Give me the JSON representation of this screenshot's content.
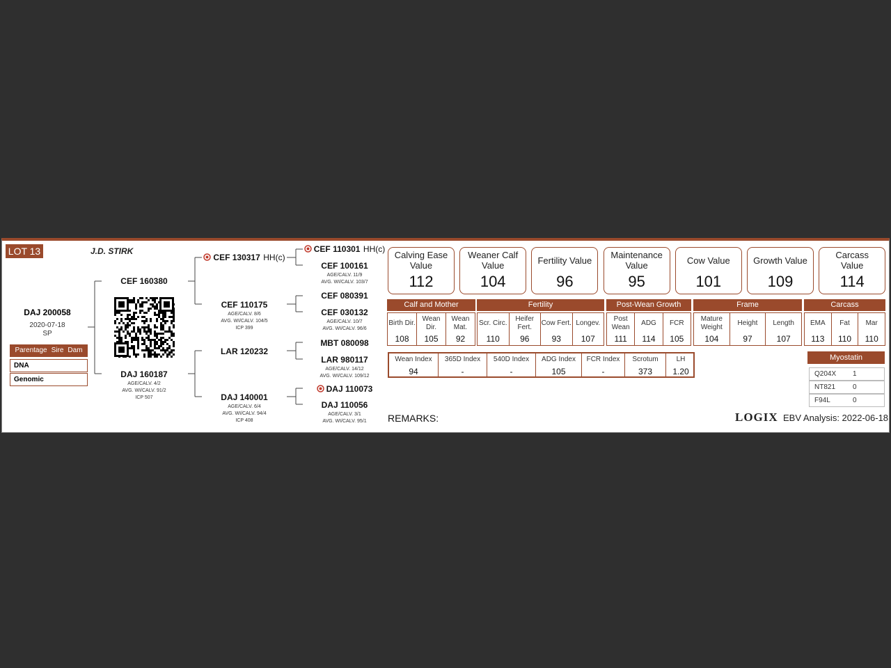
{
  "lot": "LOT 13",
  "breeder": "J.D. STIRK",
  "animal": {
    "id": "DAJ 200058",
    "birth_date": "2020-07-18",
    "status": "SP"
  },
  "parentage": {
    "header": [
      "Parentage",
      "Sire",
      "Dam"
    ],
    "rows": [
      "DNA",
      "Genomic"
    ]
  },
  "pedigree": {
    "parents": [
      {
        "id": "CEF 160380"
      },
      {
        "id": "DAJ 160187",
        "details": [
          "AGE/CALV. 4/2",
          "AVG. WI/CALV. 91/2",
          "ICP 507"
        ]
      }
    ],
    "grandparents": [
      {
        "id": "CEF 130317",
        "suffix": "HH(c)",
        "icon": true
      },
      {
        "id": "CEF 110175",
        "details": [
          "AGE/CALV. 8/6",
          "AVG. WI/CALV. 104/5",
          "ICP 399"
        ]
      },
      {
        "id": "LAR 120232"
      },
      {
        "id": "DAJ 140001",
        "details": [
          "AGE/CALV. 6/4",
          "AVG. WI/CALV. 94/4",
          "ICP 408"
        ]
      }
    ],
    "great_grandparents": [
      {
        "id": "CEF 110301",
        "suffix": "HH(c)",
        "icon": true
      },
      {
        "id": "CEF 100161",
        "details": [
          "AGE/CALV. 11/9",
          "AVG. WI/CALV. 103/7"
        ]
      },
      {
        "id": "CEF 080391"
      },
      {
        "id": "CEF 030132",
        "details": [
          "AGE/CALV. 10/7",
          "AVG. WI/CALV. 96/6"
        ]
      },
      {
        "id": "MBT 080098"
      },
      {
        "id": "LAR 980117",
        "details": [
          "AGE/CALV. 14/12",
          "AVG. WI/CALV. 109/12"
        ]
      },
      {
        "id": "DAJ 110073",
        "icon": true
      },
      {
        "id": "DAJ 110056",
        "details": [
          "AGE/CALV. 3/1",
          "AVG. WI/CALV. 95/1"
        ]
      }
    ]
  },
  "value_cards": [
    {
      "label": "Calving Ease Value",
      "value": 112
    },
    {
      "label": "Weaner Calf Value",
      "value": 104
    },
    {
      "label": "Fertility Value",
      "value": 96
    },
    {
      "label": "Maintenance Value",
      "value": 95
    },
    {
      "label": "Cow Value",
      "value": 101
    },
    {
      "label": "Growth Value",
      "value": 109
    },
    {
      "label": "Carcass Value",
      "value": 114
    }
  ],
  "groups": [
    {
      "name": "Calf and Mother",
      "traits": [
        {
          "label": "Birth Dir.",
          "value": 108
        },
        {
          "label": "Wean Dir.",
          "value": 105
        },
        {
          "label": "Wean Mat.",
          "value": 92
        }
      ]
    },
    {
      "name": "Fertility",
      "traits": [
        {
          "label": "Scr. Circ.",
          "value": 110
        },
        {
          "label": "Heifer Fert.",
          "value": 96
        },
        {
          "label": "Cow Fert.",
          "value": 93
        },
        {
          "label": "Longev.",
          "value": 107
        }
      ]
    },
    {
      "name": "Post-Wean Growth",
      "traits": [
        {
          "label": "Post Wean",
          "value": 111
        },
        {
          "label": "ADG",
          "value": 114
        },
        {
          "label": "FCR",
          "value": 105
        }
      ]
    },
    {
      "name": "Frame",
      "traits": [
        {
          "label": "Mature Weight",
          "value": 104
        },
        {
          "label": "Height",
          "value": 97
        },
        {
          "label": "Length",
          "value": 107
        }
      ]
    },
    {
      "name": "Carcass",
      "traits": [
        {
          "label": "EMA",
          "value": 113
        },
        {
          "label": "Fat",
          "value": 110
        },
        {
          "label": "Mar",
          "value": 110
        }
      ]
    }
  ],
  "indexes": [
    {
      "label": "Wean Index",
      "value": 94
    },
    {
      "label": "365D Index",
      "value": "-"
    },
    {
      "label": "540D Index",
      "value": "-"
    },
    {
      "label": "ADG Index",
      "value": 105
    },
    {
      "label": "FCR Index",
      "value": "-"
    },
    {
      "label": "Scrotum",
      "value": 373
    },
    {
      "label": "LH",
      "value": "1.20"
    }
  ],
  "myostatin": {
    "title": "Myostatin",
    "rows": [
      [
        "Q204X",
        1
      ],
      [
        "NT821",
        0
      ],
      [
        "F94L",
        0
      ]
    ]
  },
  "remarks": "REMARKS:",
  "logo": "LOGIX",
  "analysis": "EBV Analysis: 2022-06-18"
}
